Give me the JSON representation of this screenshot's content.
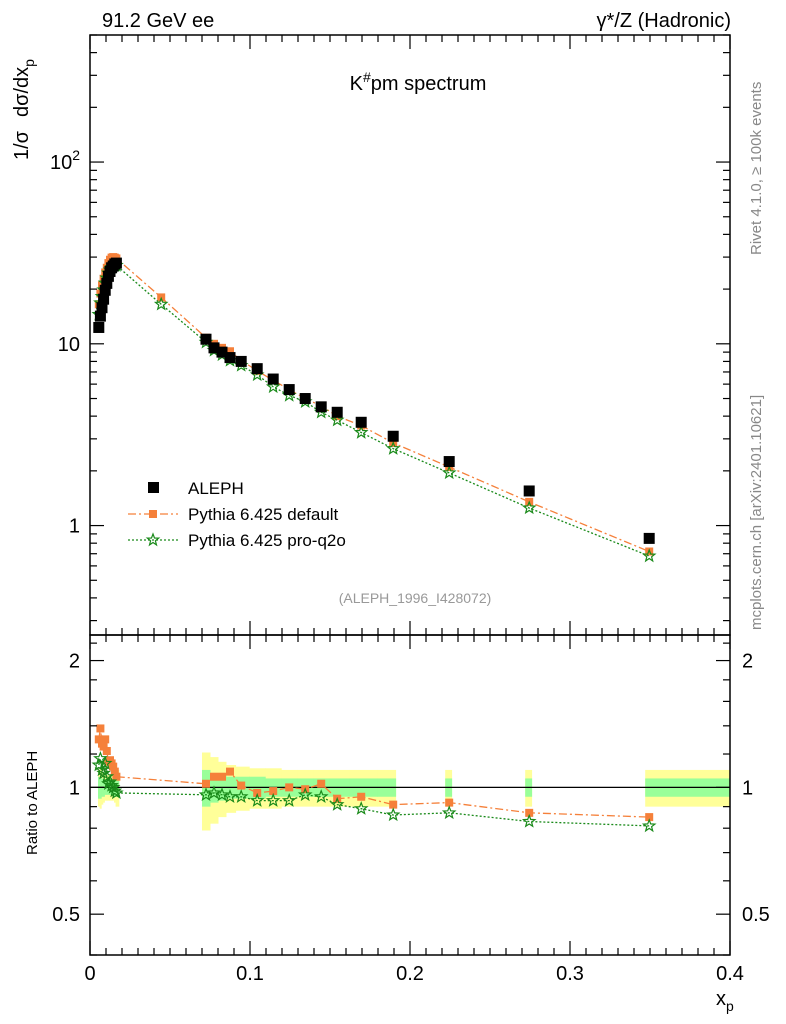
{
  "header": {
    "left": "91.2 GeV ee",
    "right": "γ*/Z (Hadronic)"
  },
  "side_labels": {
    "rivet": "Rivet 4.1.0, ≥ 100k events",
    "mcplots": "mcplots.cern.ch [arXiv:2401.10621]"
  },
  "chart_data": [
    {
      "type": "scatter",
      "title": "K#pm spectrum",
      "title_base": "K",
      "title_sup": "#",
      "title_rest": "pm spectrum",
      "ylabel": "1/σ dσ/dx_p",
      "ylabel_pre": "1/σ",
      "ylabel_mid": "dσ/dx",
      "ylabel_sub": "p",
      "xlabel": "x_p",
      "xlabel_base": "x",
      "xlabel_sub": "p",
      "yscale": "log",
      "xlim": [
        0,
        0.4
      ],
      "ylim": [
        0.25,
        500
      ],
      "ytick_labels": [
        {
          "value": 1,
          "base": "1",
          "sup": ""
        },
        {
          "value": 10,
          "base": "10",
          "sup": ""
        },
        {
          "value": 100,
          "base": "10",
          "sup": "2"
        }
      ],
      "analysis_id": "(ALEPH_1996_I428072)",
      "legend_position": "lower-left",
      "series": [
        {
          "name": "ALEPH",
          "color": "#000000",
          "marker": "square",
          "x": [
            0.0055,
            0.0065,
            0.0075,
            0.0085,
            0.0095,
            0.0105,
            0.0115,
            0.0125,
            0.0135,
            0.0145,
            0.0155,
            0.0165,
            0.0725,
            0.0775,
            0.0825,
            0.0875,
            0.0945,
            0.1045,
            0.1145,
            0.1245,
            0.1345,
            0.1445,
            0.1545,
            0.1695,
            0.1895,
            0.2245,
            0.2745,
            0.3495
          ],
          "y": [
            12.3,
            14.2,
            15.8,
            17.6,
            19.7,
            21.5,
            23.5,
            25.0,
            26.2,
            26.8,
            27.5,
            27.8,
            10.6,
            9.5,
            9.0,
            8.4,
            8.0,
            7.3,
            6.4,
            5.6,
            5.0,
            4.5,
            4.2,
            3.7,
            3.1,
            2.25,
            1.55,
            0.85
          ]
        },
        {
          "name": "Pythia 6.425 default",
          "color": "#f5803a",
          "marker": "square-small",
          "line": "dashdot",
          "x": [
            0.0055,
            0.0065,
            0.0075,
            0.0085,
            0.0095,
            0.0105,
            0.0115,
            0.0125,
            0.0135,
            0.0145,
            0.0155,
            0.0165,
            0.0445,
            0.0725,
            0.0775,
            0.0825,
            0.0875,
            0.0945,
            0.1045,
            0.1145,
            0.1245,
            0.1345,
            0.1445,
            0.1545,
            0.1695,
            0.1895,
            0.2245,
            0.2745,
            0.3495
          ],
          "y": [
            16.5,
            18.9,
            21.0,
            22.8,
            24.7,
            26.2,
            27.8,
            29.0,
            29.8,
            30.0,
            29.8,
            29.5,
            18.0,
            10.8,
            10.0,
            9.5,
            9.1,
            8.1,
            7.1,
            6.3,
            5.6,
            5.0,
            4.55,
            4.0,
            3.55,
            2.85,
            2.1,
            1.35,
            0.72
          ]
        },
        {
          "name": "Pythia 6.425 pro-q2o",
          "color": "#1a8a1a",
          "marker": "star",
          "line": "dotted",
          "x": [
            0.0055,
            0.0065,
            0.0075,
            0.0085,
            0.0095,
            0.0105,
            0.0115,
            0.0125,
            0.0135,
            0.0145,
            0.0155,
            0.0165,
            0.0445,
            0.0725,
            0.0775,
            0.0825,
            0.0875,
            0.0945,
            0.1045,
            0.1145,
            0.1245,
            0.1345,
            0.1445,
            0.1545,
            0.1695,
            0.1895,
            0.2245,
            0.2745,
            0.3495
          ],
          "y": [
            14.5,
            16.8,
            18.2,
            19.8,
            21.6,
            23.0,
            24.5,
            25.5,
            26.3,
            26.8,
            27.0,
            27.0,
            16.5,
            10.2,
            9.2,
            8.7,
            8.1,
            7.6,
            6.75,
            5.8,
            5.2,
            4.8,
            4.2,
            3.8,
            3.25,
            2.65,
            1.95,
            1.25,
            0.68
          ]
        }
      ]
    },
    {
      "type": "scatter",
      "ylabel": "Ratio to ALEPH",
      "xlim": [
        0,
        0.4
      ],
      "ylim": [
        0.4,
        2.3
      ],
      "yscale": "log",
      "reference_line": 1,
      "ytick_labels": [
        {
          "value": 0.5,
          "label": "0.5"
        },
        {
          "value": 1,
          "label": "1"
        },
        {
          "value": 2,
          "label": "2"
        }
      ],
      "xtick_labels": [
        {
          "value": 0,
          "label": "0"
        },
        {
          "value": 0.1,
          "label": "0.1"
        },
        {
          "value": 0.2,
          "label": "0.2"
        },
        {
          "value": 0.3,
          "label": "0.3"
        },
        {
          "value": 0.4,
          "label": "0.4"
        }
      ],
      "bands": [
        {
          "name": "total uncertainty",
          "color": "#ffff99"
        },
        {
          "name": "statistical uncertainty",
          "color": "#99ff99"
        }
      ],
      "band_x": [
        0.0055,
        0.0065,
        0.0075,
        0.0085,
        0.0095,
        0.0105,
        0.0115,
        0.0125,
        0.0135,
        0.0145,
        0.0155,
        0.0165,
        0.0725,
        0.0775,
        0.0825,
        0.0875,
        0.0945,
        0.1045,
        0.1145,
        0.1245,
        0.1345,
        0.1445,
        0.1545,
        0.1695,
        0.1895,
        0.2245,
        0.2745,
        0.3495
      ],
      "band_halfwidth": [
        0.1,
        0.11,
        0.09,
        0.08,
        0.07,
        0.07,
        0.07,
        0.07,
        0.07,
        0.07,
        0.08,
        0.1,
        0.21,
        0.18,
        0.15,
        0.13,
        0.12,
        0.11,
        0.11,
        0.1,
        0.1,
        0.1,
        0.1,
        0.1,
        0.1,
        0.1,
        0.1,
        0.1
      ],
      "stat_halfwidth": [
        0.06,
        0.06,
        0.05,
        0.05,
        0.04,
        0.04,
        0.04,
        0.04,
        0.04,
        0.04,
        0.05,
        0.05,
        0.1,
        0.08,
        0.07,
        0.06,
        0.06,
        0.06,
        0.05,
        0.05,
        0.05,
        0.05,
        0.05,
        0.05,
        0.05,
        0.05,
        0.05,
        0.05
      ],
      "series": [
        {
          "name": "Pythia 6.425 default",
          "color": "#f5803a",
          "marker": "square-small",
          "line": "dashdot",
          "x": [
            0.0055,
            0.0065,
            0.0075,
            0.0085,
            0.0095,
            0.0105,
            0.0115,
            0.0125,
            0.0135,
            0.0145,
            0.0155,
            0.0165,
            0.0725,
            0.0775,
            0.0825,
            0.0875,
            0.0945,
            0.1045,
            0.1145,
            0.1245,
            0.1345,
            0.1445,
            0.1545,
            0.1695,
            0.1895,
            0.2245,
            0.2745,
            0.3495
          ],
          "y": [
            1.3,
            1.38,
            1.27,
            1.25,
            1.3,
            1.22,
            1.15,
            1.16,
            1.14,
            1.12,
            1.09,
            1.06,
            1.02,
            1.06,
            1.06,
            1.09,
            1.01,
            0.97,
            0.98,
            1.0,
            0.99,
            1.02,
            0.94,
            0.95,
            0.91,
            0.92,
            0.87,
            0.85
          ]
        },
        {
          "name": "Pythia 6.425 pro-q2o",
          "color": "#1a8a1a",
          "marker": "star",
          "line": "dotted",
          "x": [
            0.0055,
            0.0065,
            0.0075,
            0.0085,
            0.0095,
            0.0105,
            0.0115,
            0.0125,
            0.0135,
            0.0145,
            0.0155,
            0.0165,
            0.0725,
            0.0775,
            0.0825,
            0.0875,
            0.0945,
            0.1045,
            0.1145,
            0.1245,
            0.1345,
            0.1445,
            0.1545,
            0.1695,
            0.1895,
            0.2245,
            0.2745,
            0.3495
          ],
          "y": [
            1.13,
            1.17,
            1.1,
            1.08,
            1.14,
            1.06,
            1.02,
            1.03,
            1.01,
            1.0,
            0.98,
            0.97,
            0.96,
            0.97,
            0.96,
            0.95,
            0.95,
            0.93,
            0.93,
            0.93,
            0.96,
            0.95,
            0.91,
            0.89,
            0.86,
            0.87,
            0.83,
            0.81
          ]
        }
      ]
    }
  ]
}
